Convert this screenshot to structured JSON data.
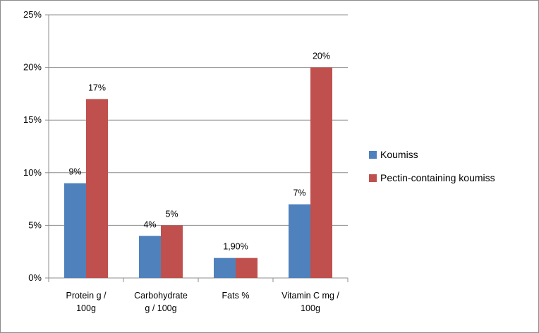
{
  "chart_data": {
    "type": "bar",
    "title": "",
    "xlabel": "",
    "ylabel": "",
    "ylim": [
      0,
      25
    ],
    "yticks": [
      "0%",
      "5%",
      "10%",
      "15%",
      "20%",
      "25%"
    ],
    "yticks_values": [
      0,
      5,
      10,
      15,
      20,
      25
    ],
    "grid": true,
    "legend_position": "right",
    "categories": [
      [
        "Protein g /",
        "100g"
      ],
      [
        "Carbohydrate",
        "g / 100g"
      ],
      [
        "Fats %"
      ],
      [
        "Vitamin C mg /",
        "100g"
      ]
    ],
    "series": [
      {
        "name": "Koumiss",
        "color": "#4f81bd",
        "values": [
          9,
          4,
          1.9,
          7
        ],
        "labels": [
          "9%",
          "4%",
          "1,90%",
          "7%"
        ]
      },
      {
        "name": "Pectin-containing koumiss",
        "color": "#c0504d",
        "values": [
          17,
          5,
          1.9,
          20
        ],
        "labels": [
          "17%",
          "5%",
          "",
          "20%"
        ]
      }
    ]
  }
}
